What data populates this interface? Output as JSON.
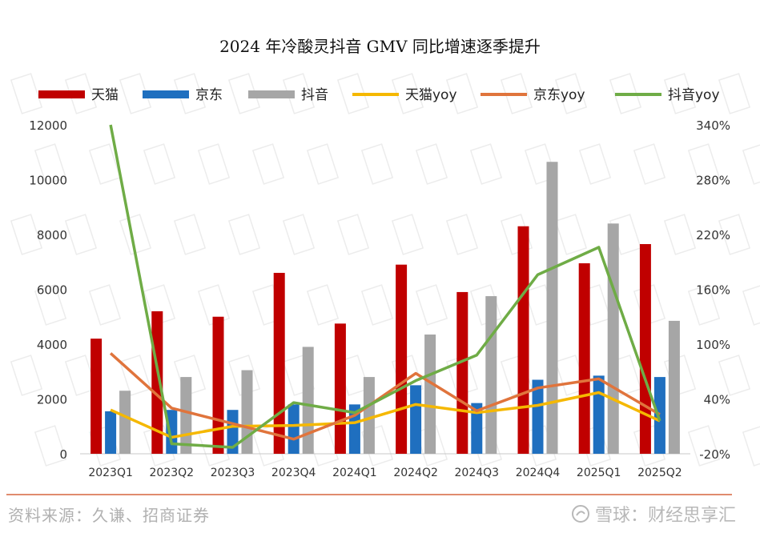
{
  "title": "2024 年冷酸灵抖音 GMV 同比增速逐季提升",
  "source": "资料来源：久谦、招商证券",
  "watermark": "雪球：财经思享汇",
  "chart_data": {
    "type": "bar",
    "categories": [
      "2023Q1",
      "2023Q2",
      "2023Q3",
      "2023Q4",
      "2024Q1",
      "2024Q2",
      "2024Q3",
      "2024Q4",
      "2025Q1",
      "2025Q2"
    ],
    "ylim_left": [
      0,
      12000
    ],
    "yticks_left": [
      0,
      2000,
      4000,
      6000,
      8000,
      10000,
      12000
    ],
    "ytick_labels_left": [
      "0",
      "2000",
      "4000",
      "6000",
      "8000",
      "10000",
      "12000"
    ],
    "ylim_right": [
      -20,
      340
    ],
    "yticks_right": [
      -20,
      40,
      100,
      160,
      220,
      280,
      340
    ],
    "ytick_labels_right": [
      "-20%",
      "40%",
      "100%",
      "160%",
      "220%",
      "280%",
      "340%"
    ],
    "legend_position": "top",
    "bar_series": [
      {
        "name": "天猫",
        "color": "#c00000",
        "values": [
          4200,
          5200,
          5000,
          6600,
          4750,
          6900,
          5900,
          8300,
          6950,
          7650
        ]
      },
      {
        "name": "京东",
        "color": "#1f6fbf",
        "values": [
          1550,
          1600,
          1600,
          1800,
          1800,
          2500,
          1850,
          2700,
          2850,
          2800
        ]
      },
      {
        "name": "抖音",
        "color": "#a6a6a6",
        "values": [
          2300,
          2800,
          3050,
          3900,
          2800,
          4350,
          5750,
          10650,
          8400,
          4850
        ]
      }
    ],
    "line_series": [
      {
        "name": "天猫yoy",
        "color": "#f5b800",
        "values": [
          28,
          -2,
          10,
          11,
          14,
          34,
          25,
          33,
          47,
          16
        ]
      },
      {
        "name": "京东yoy",
        "color": "#e0743c",
        "values": [
          90,
          30,
          13,
          -4,
          22,
          68,
          27,
          52,
          62,
          23
        ]
      },
      {
        "name": "抖音yoy",
        "color": "#6fac46",
        "values": [
          340,
          -9,
          -13,
          36,
          25,
          60,
          88,
          176,
          206,
          16
        ]
      }
    ]
  }
}
